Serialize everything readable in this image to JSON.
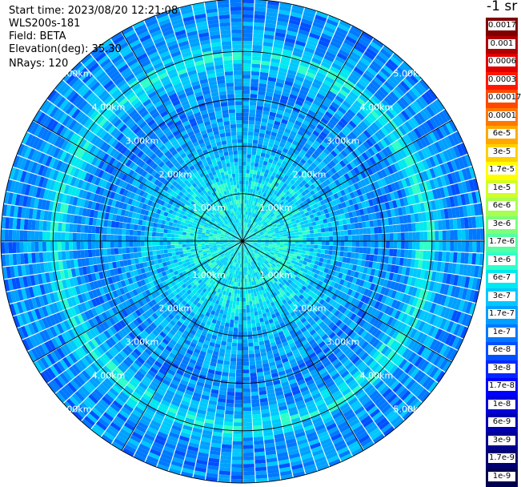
{
  "header": {
    "start_time": "Start time: 2023/08/20 12:21:08",
    "instrument": "WLS200s-181",
    "field": "Field: BETA",
    "elevation": "Elevation(deg): 35.30",
    "nrays": "NRays: 120"
  },
  "colorbar": {
    "unit": "-1 sr",
    "labels": [
      "0.0017",
      "0.001",
      "0.0006",
      "0.0003",
      "0.00017",
      "0.0001",
      "6e-5",
      "3e-5",
      "1.7e-5",
      "1e-5",
      "6e-6",
      "3e-6",
      "1.7e-6",
      "1e-6",
      "6e-7",
      "3e-7",
      "1.7e-7",
      "1e-7",
      "6e-8",
      "3e-8",
      "1.7e-8",
      "1e-8",
      "6e-9",
      "3e-9",
      "1.7e-9",
      "1e-9"
    ],
    "colors": [
      "#800000",
      "#b00000",
      "#e00000",
      "#ff1800",
      "#ff4800",
      "#ff7800",
      "#ffa800",
      "#ffd000",
      "#ffff00",
      "#d0ff28",
      "#a8ff50",
      "#7cff7a",
      "#55ffa2",
      "#2fffc8",
      "#00e8f0",
      "#00c8ff",
      "#00a0ff",
      "#0078ff",
      "#0050ff",
      "#0028ff",
      "#0000ff",
      "#0000d8",
      "#0000b0",
      "#000090",
      "#000070",
      "#000050"
    ]
  },
  "chart_data": {
    "type": "heatmap",
    "projection": "polar PPI",
    "rays": 120,
    "range_rings_km": [
      1,
      2,
      3,
      4,
      5
    ],
    "range_labels": [
      "1.00km",
      "2.00km",
      "3.00km",
      "4.00km",
      "5.00km"
    ],
    "max_range_km": 5.0,
    "grid": true,
    "field": "BETA",
    "elevation_deg": 35.3,
    "color_scale": "log",
    "value_range": [
      1e-09,
      0.0017
    ]
  }
}
